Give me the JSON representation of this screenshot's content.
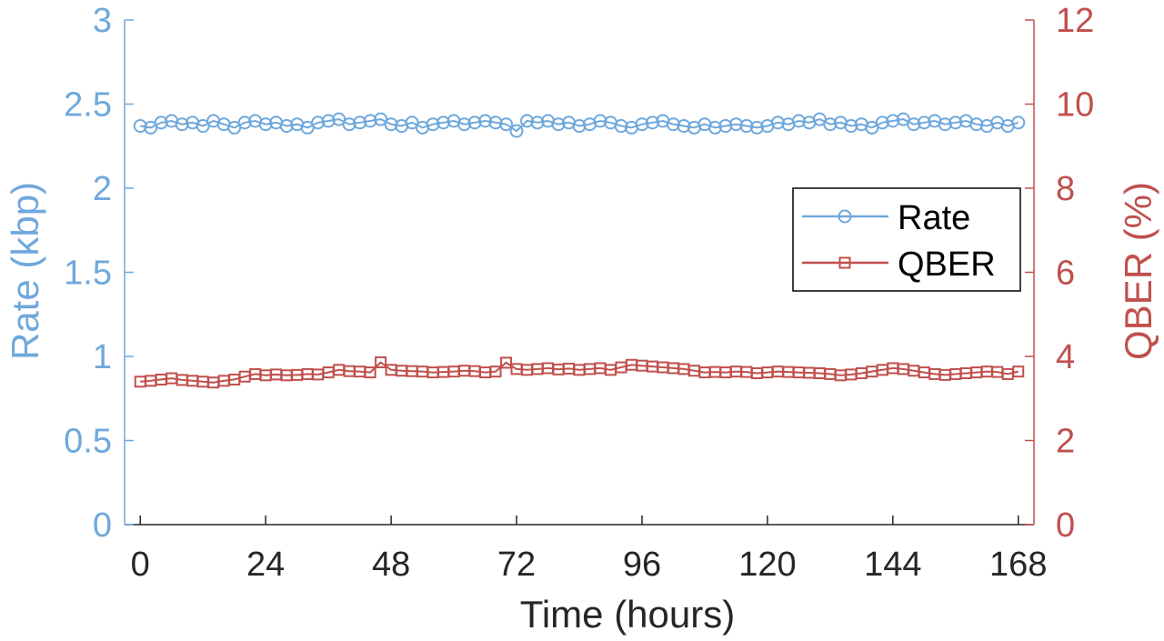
{
  "chart_data": {
    "type": "line",
    "xlabel": "Time (hours)",
    "xlim": [
      -3,
      171
    ],
    "xticks": [
      "0",
      "24",
      "48",
      "72",
      "96",
      "120",
      "144",
      "168"
    ],
    "y_left": {
      "label": "Rate (kbp)",
      "lim": [
        0,
        3
      ],
      "ticks": [
        "0",
        "0.5",
        "1",
        "1.5",
        "2",
        "2.5",
        "3"
      ],
      "color": "#6fa8dc"
    },
    "y_right": {
      "label": "QBER (%)",
      "lim": [
        0,
        12
      ],
      "ticks": [
        "0",
        "2",
        "4",
        "6",
        "8",
        "10",
        "12"
      ],
      "color": "#c0504d"
    },
    "legend": {
      "position": "right",
      "entries": [
        "Rate",
        "QBER"
      ]
    },
    "grid": false,
    "series": [
      {
        "name": "Rate",
        "axis": "left",
        "marker": "circle",
        "color": "#6fa8dc",
        "x": [
          0,
          2,
          4,
          6,
          8,
          10,
          12,
          14,
          16,
          18,
          20,
          22,
          24,
          26,
          28,
          30,
          32,
          34,
          36,
          38,
          40,
          42,
          44,
          46,
          48,
          50,
          52,
          54,
          56,
          58,
          60,
          62,
          64,
          66,
          68,
          70,
          72,
          74,
          76,
          78,
          80,
          82,
          84,
          86,
          88,
          90,
          92,
          94,
          96,
          98,
          100,
          102,
          104,
          106,
          108,
          110,
          112,
          114,
          116,
          118,
          120,
          122,
          124,
          126,
          128,
          130,
          132,
          134,
          136,
          138,
          140,
          142,
          144,
          146,
          148,
          150,
          152,
          154,
          156,
          158,
          160,
          162,
          164,
          166,
          168
        ],
        "values": [
          2.37,
          2.36,
          2.39,
          2.4,
          2.38,
          2.39,
          2.37,
          2.4,
          2.38,
          2.36,
          2.39,
          2.4,
          2.38,
          2.39,
          2.37,
          2.38,
          2.36,
          2.39,
          2.4,
          2.41,
          2.38,
          2.39,
          2.4,
          2.41,
          2.38,
          2.37,
          2.39,
          2.36,
          2.38,
          2.39,
          2.4,
          2.38,
          2.39,
          2.4,
          2.39,
          2.38,
          2.34,
          2.4,
          2.39,
          2.4,
          2.38,
          2.39,
          2.37,
          2.38,
          2.4,
          2.39,
          2.37,
          2.36,
          2.38,
          2.39,
          2.4,
          2.38,
          2.37,
          2.36,
          2.38,
          2.36,
          2.37,
          2.38,
          2.37,
          2.36,
          2.37,
          2.39,
          2.38,
          2.4,
          2.39,
          2.41,
          2.38,
          2.39,
          2.37,
          2.38,
          2.36,
          2.39,
          2.4,
          2.41,
          2.38,
          2.39,
          2.4,
          2.38,
          2.39,
          2.4,
          2.38,
          2.37,
          2.39,
          2.37,
          2.39
        ]
      },
      {
        "name": "QBER",
        "axis": "right",
        "marker": "square",
        "color": "#c0504d",
        "x": [
          0,
          2,
          4,
          6,
          8,
          10,
          12,
          14,
          16,
          18,
          20,
          22,
          24,
          26,
          28,
          30,
          32,
          34,
          36,
          38,
          40,
          42,
          44,
          46,
          48,
          50,
          52,
          54,
          56,
          58,
          60,
          62,
          64,
          66,
          68,
          70,
          72,
          74,
          76,
          78,
          80,
          82,
          84,
          86,
          88,
          90,
          92,
          94,
          96,
          98,
          100,
          102,
          104,
          106,
          108,
          110,
          112,
          114,
          116,
          118,
          120,
          122,
          124,
          126,
          128,
          130,
          132,
          134,
          136,
          138,
          140,
          142,
          144,
          146,
          148,
          150,
          152,
          154,
          156,
          158,
          160,
          162,
          164,
          166,
          168
        ],
        "values": [
          3.4,
          3.42,
          3.45,
          3.48,
          3.44,
          3.42,
          3.4,
          3.38,
          3.42,
          3.45,
          3.52,
          3.58,
          3.55,
          3.57,
          3.55,
          3.56,
          3.58,
          3.57,
          3.62,
          3.68,
          3.65,
          3.64,
          3.62,
          3.86,
          3.68,
          3.66,
          3.65,
          3.64,
          3.62,
          3.63,
          3.64,
          3.66,
          3.65,
          3.62,
          3.64,
          3.85,
          3.7,
          3.68,
          3.7,
          3.72,
          3.69,
          3.71,
          3.68,
          3.7,
          3.72,
          3.68,
          3.74,
          3.8,
          3.78,
          3.76,
          3.74,
          3.72,
          3.7,
          3.66,
          3.62,
          3.63,
          3.62,
          3.64,
          3.63,
          3.6,
          3.62,
          3.64,
          3.63,
          3.62,
          3.61,
          3.6,
          3.58,
          3.55,
          3.57,
          3.6,
          3.64,
          3.68,
          3.72,
          3.7,
          3.66,
          3.62,
          3.58,
          3.56,
          3.58,
          3.6,
          3.62,
          3.64,
          3.63,
          3.58,
          3.64
        ]
      }
    ]
  }
}
